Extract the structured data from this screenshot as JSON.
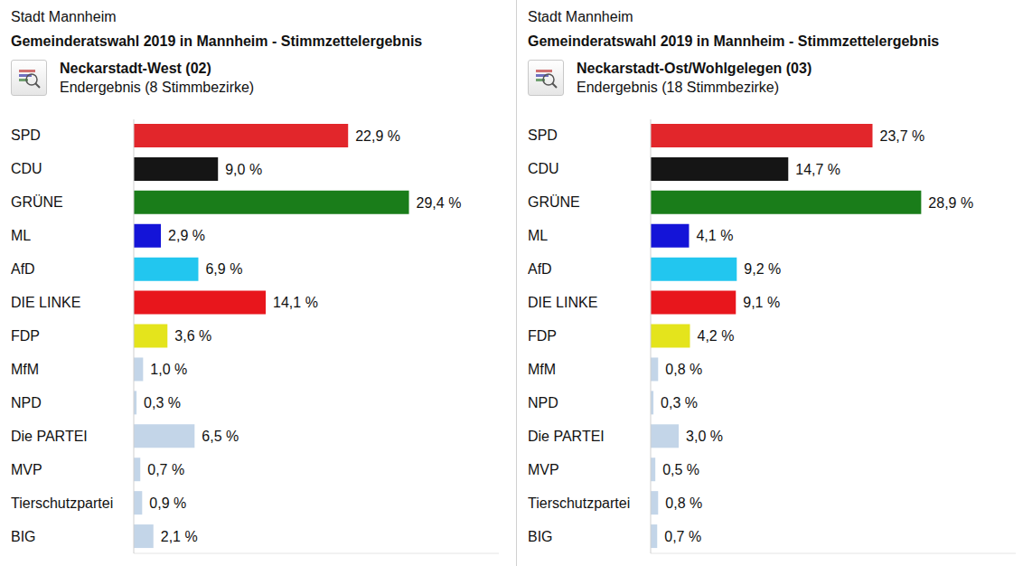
{
  "chart_data": [
    {
      "type": "bar",
      "header": "Stadt Mannheim",
      "title": "Gemeinderatswahl 2019 in Mannheim - Stimmzettelergebnis",
      "subtitle": "Neckarstadt-West (02)",
      "annotations": [
        "Endergebnis (8 Stimmbezirke)"
      ],
      "orientation": "horizontal",
      "data_labels": true,
      "tick_labels": "y",
      "grid": false,
      "categories": [
        "SPD",
        "CDU",
        "GRÜNE",
        "ML",
        "AfD",
        "DIE LINKE",
        "FDP",
        "MfM",
        "NPD",
        "Die PARTEI",
        "MVP",
        "Tierschutzpartei",
        "BIG"
      ],
      "values": [
        22.9,
        9.0,
        29.4,
        2.9,
        6.9,
        14.1,
        3.6,
        1.0,
        0.3,
        6.5,
        0.7,
        0.9,
        2.1
      ],
      "value_labels": [
        "22,9 %",
        "9,0 %",
        "29,4 %",
        "2,9 %",
        "6,9 %",
        "14,1 %",
        "3,6 %",
        "1,0 %",
        "0,3 %",
        "6,5 %",
        "0,7 %",
        "0,9 %",
        "2,1 %"
      ],
      "colors": [
        "#e2262b",
        "#151515",
        "#1a7d1a",
        "#1414d8",
        "#22c6ef",
        "#e8161c",
        "#e4e41c",
        "#c3d5e8",
        "#c3d5e8",
        "#c3d5e8",
        "#c3d5e8",
        "#c3d5e8",
        "#c3d5e8"
      ],
      "xlim": [
        0,
        39
      ]
    },
    {
      "type": "bar",
      "header": "Stadt Mannheim",
      "title": "Gemeinderatswahl 2019 in Mannheim - Stimmzettelergebnis",
      "subtitle": "Neckarstadt-Ost/Wohlgelegen (03)",
      "annotations": [
        "Endergebnis (18 Stimmbezirke)"
      ],
      "orientation": "horizontal",
      "data_labels": true,
      "tick_labels": "y",
      "grid": false,
      "categories": [
        "SPD",
        "CDU",
        "GRÜNE",
        "ML",
        "AfD",
        "DIE LINKE",
        "FDP",
        "MfM",
        "NPD",
        "Die PARTEI",
        "MVP",
        "Tierschutzpartei",
        "BIG"
      ],
      "values": [
        23.7,
        14.7,
        28.9,
        4.1,
        9.2,
        9.1,
        4.2,
        0.8,
        0.3,
        3.0,
        0.5,
        0.8,
        0.7
      ],
      "value_labels": [
        "23,7 %",
        "14,7 %",
        "28,9 %",
        "4,1 %",
        "9,2 %",
        "9,1 %",
        "4,2 %",
        "0,8 %",
        "0,3 %",
        "3,0 %",
        "0,5 %",
        "0,8 %",
        "0,7 %"
      ],
      "colors": [
        "#e2262b",
        "#151515",
        "#1a7d1a",
        "#1414d8",
        "#22c6ef",
        "#e8161c",
        "#e4e41c",
        "#c3d5e8",
        "#c3d5e8",
        "#c3d5e8",
        "#c3d5e8",
        "#c3d5e8",
        "#c3d5e8"
      ],
      "xlim": [
        0,
        39
      ]
    }
  ]
}
